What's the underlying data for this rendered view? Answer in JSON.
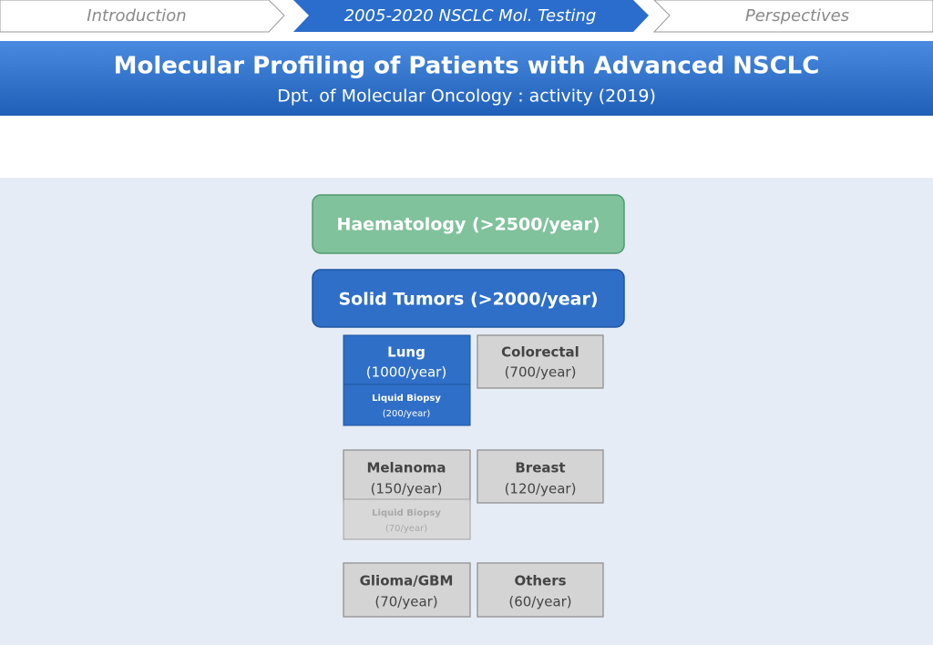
{
  "nav": {
    "steps": [
      "Introduction",
      "2005-2020 NSCLC Mol. Testing",
      "Perspectives"
    ]
  },
  "header": {
    "title": "Molecular Profiling of Patients with Advanced NSCLC",
    "subtitle": "Dpt. of Molecular Oncology : activity (2019)"
  },
  "boxes": {
    "haematology": "Haematology (>2500/year)",
    "solid_tumors": "Solid Tumors (>2000/year)",
    "lung": [
      "Lung",
      "(1000/year)"
    ],
    "lung_liquid_biopsy": [
      "Liquid Biopsy",
      "(200/year)"
    ],
    "colorectal": [
      "Colorectal",
      "(700/year)"
    ],
    "melanoma": [
      "Melanoma",
      "(150/year)"
    ],
    "melanoma_liquid_biopsy": [
      "Liquid Biopsy",
      "(70/year)"
    ],
    "breast": [
      "Breast",
      "(120/year)"
    ],
    "glioma": [
      "Glioma/GBM",
      "(70/year)"
    ],
    "others": [
      "Others",
      "(60/year)"
    ]
  }
}
